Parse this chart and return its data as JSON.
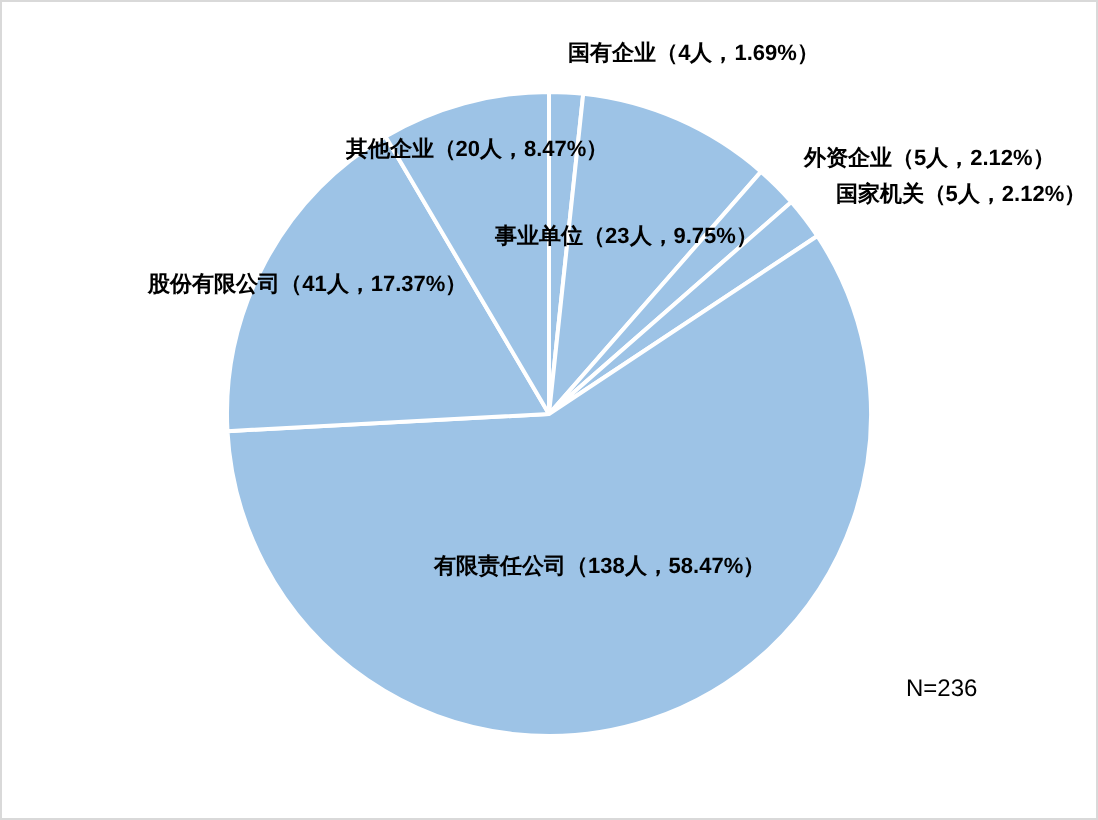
{
  "chart_data": {
    "type": "pie",
    "categories": [
      "国有企业",
      "事业单位",
      "外资企业",
      "国家机关",
      "有限责任公司",
      "股份有限公司",
      "其他企业"
    ],
    "values": [
      4,
      23,
      5,
      5,
      138,
      41,
      20
    ],
    "value_labels": [
      "（4人，1.69%）",
      "（23人，9.75%）",
      "（5人，2.12%）",
      "（5人，2.12%）",
      "（138人，58.47%）",
      "（41人，17.37%）",
      "（20人，8.47%）"
    ],
    "colors": [
      "#9dc3e6",
      "#9dc3e6",
      "#9dc3e6",
      "#9dc3e6",
      "#9dc3e6",
      "#9dc3e6",
      "#9dc3e6"
    ],
    "annotations": [
      "N=236"
    ],
    "legend": false
  }
}
